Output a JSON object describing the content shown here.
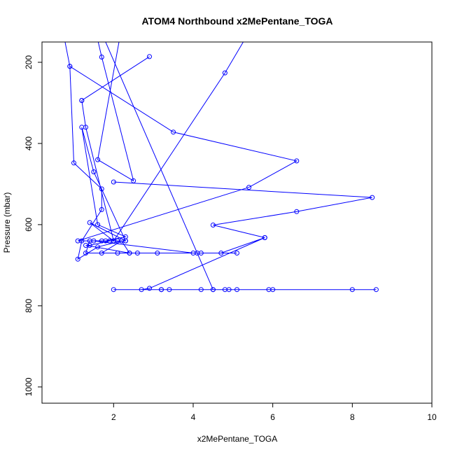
{
  "chart_data": {
    "type": "line",
    "title": "ATOM4 Northbound x2MePentane_TOGA",
    "xlabel": "x2MePentane_TOGA",
    "ylabel": "Pressure (mbar)",
    "xlim": [
      0.2,
      10.0
    ],
    "ylim": [
      1040,
      150
    ],
    "y_reversed": true,
    "grid": false,
    "legend": "none",
    "series_color": "#0000ff",
    "x_ticks": [
      2,
      4,
      6,
      8,
      10
    ],
    "y_ticks": [
      200,
      400,
      600,
      800,
      1000
    ],
    "series": [
      {
        "points": [
          [
            0.6,
            60
          ],
          [
            0.9,
            210
          ],
          [
            1.0,
            448
          ],
          [
            1.7,
            512
          ],
          [
            1.7,
            563
          ],
          [
            1.2,
            640
          ],
          [
            1.1,
            685
          ],
          [
            1.6,
            655
          ],
          [
            2.2,
            640
          ],
          [
            2.4,
            670
          ],
          [
            3.1,
            670
          ],
          [
            4.2,
            670
          ],
          [
            5.1,
            670
          ],
          [
            1.3,
            670
          ],
          [
            1.4,
            640
          ],
          [
            1.8,
            640
          ],
          [
            2.3,
            630
          ],
          [
            1.6,
            600
          ],
          [
            1.2,
            360
          ],
          [
            1.5,
            470
          ],
          [
            2.3,
            640
          ],
          [
            2.0,
            640
          ],
          [
            1.4,
            595
          ],
          [
            2.3,
            640
          ],
          [
            1.7,
            640
          ],
          [
            1.5,
            640
          ],
          [
            4.0,
            670
          ],
          [
            2.6,
            670
          ],
          [
            2.1,
            670
          ],
          [
            4.7,
            670
          ],
          [
            5.8,
            632
          ],
          [
            2.9,
            757
          ],
          [
            2.7,
            760
          ],
          [
            8.0,
            760
          ],
          [
            4.8,
            760
          ],
          [
            6.0,
            760
          ],
          [
            3.2,
            760
          ],
          [
            4.9,
            760
          ],
          [
            5.1,
            760
          ],
          [
            3.4,
            760
          ],
          [
            2.0,
            760
          ],
          [
            5.9,
            760
          ],
          [
            8.6,
            760
          ],
          [
            4.5,
            760
          ],
          [
            4.2,
            760
          ],
          [
            3.2,
            760
          ],
          [
            4.5,
            760
          ],
          [
            1.4,
            60
          ],
          [
            1.7,
            187
          ],
          [
            2.5,
            492
          ],
          [
            1.6,
            440
          ],
          [
            2.3,
            60
          ],
          [
            1.7,
            60
          ],
          [
            1.3,
            60
          ]
        ]
      },
      {
        "points": [
          [
            1.2,
            294
          ],
          [
            2.9,
            186
          ]
        ]
      },
      {
        "points": [
          [
            2.0,
            495
          ],
          [
            8.5,
            533
          ],
          [
            6.6,
            568
          ],
          [
            4.5,
            601
          ],
          [
            5.8,
            632
          ]
        ]
      },
      {
        "points": [
          [
            1.2,
            294
          ],
          [
            1.3,
            360
          ],
          [
            2.0,
            640
          ],
          [
            4.8,
            226
          ],
          [
            5.5,
            110
          ]
        ]
      },
      {
        "points": [
          [
            0.9,
            210
          ],
          [
            3.5,
            372
          ],
          [
            6.6,
            443
          ],
          [
            5.4,
            508
          ],
          [
            1.1,
            640
          ],
          [
            2.1,
            640
          ],
          [
            1.9,
            640
          ],
          [
            1.4,
            651
          ],
          [
            1.3,
            651
          ],
          [
            2.4,
            670
          ],
          [
            4.1,
            670
          ],
          [
            1.7,
            670
          ],
          [
            2.2,
            640
          ]
        ]
      }
    ]
  }
}
